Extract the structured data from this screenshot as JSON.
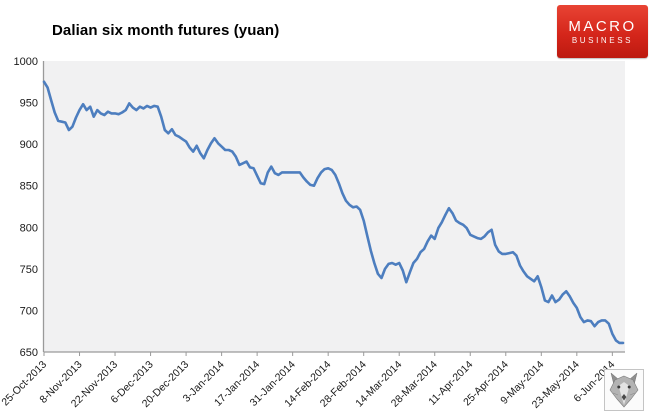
{
  "title": "Dalian six month futures (yuan)",
  "logo": {
    "line1": "MACRO",
    "line2": "BUSINESS",
    "bg_top": "#e84434",
    "bg_mid": "#d5261b",
    "bg_bottom": "#bd1a10"
  },
  "wolf_logo": {
    "name": "wolf-head stamp"
  },
  "chart_data": {
    "type": "line",
    "title": "Dalian six month futures (yuan)",
    "xlabel": "",
    "ylabel": "",
    "ylim": [
      650,
      1000
    ],
    "y_ticks": [
      1000,
      950,
      900,
      850,
      800,
      750,
      700,
      650
    ],
    "x_tick_labels": [
      "25-Oct-2013",
      "8-Nov-2013",
      "22-Nov-2013",
      "6-Dec-2013",
      "20-Dec-2013",
      "3-Jan-2014",
      "17-Jan-2014",
      "31-Jan-2014",
      "14-Feb-2014",
      "28-Feb-2014",
      "14-Mar-2014",
      "28-Mar-2014",
      "11-Apr-2014",
      "25-Apr-2014",
      "9-May-2014",
      "23-May-2014",
      "6-Jun-2014"
    ],
    "points_per_tick": 10,
    "grid": false,
    "legend": "none",
    "line_color": "#4d7ebf",
    "plot_bg": "#f1f1f2",
    "axis_color": "#9a9a9a",
    "values": [
      975,
      968,
      953,
      938,
      928,
      927,
      926,
      917,
      921,
      932,
      941,
      948,
      941,
      945,
      933,
      941,
      937,
      935,
      939,
      937,
      937,
      936,
      938,
      941,
      949,
      944,
      941,
      945,
      943,
      946,
      944,
      946,
      945,
      933,
      917,
      913,
      918,
      911,
      909,
      906,
      903,
      896,
      891,
      898,
      889,
      883,
      893,
      901,
      907,
      901,
      897,
      893,
      893,
      891,
      885,
      875,
      877,
      879,
      872,
      871,
      862,
      853,
      852,
      866,
      873,
      865,
      863,
      866,
      866,
      866,
      866,
      866,
      866,
      860,
      855,
      851,
      850,
      859,
      866,
      870,
      871,
      869,
      863,
      853,
      841,
      832,
      827,
      824,
      825,
      821,
      808,
      790,
      772,
      757,
      744,
      739,
      750,
      756,
      757,
      755,
      757,
      748,
      734,
      746,
      757,
      762,
      770,
      774,
      783,
      790,
      786,
      799,
      806,
      815,
      823,
      817,
      808,
      805,
      803,
      799,
      791,
      789,
      787,
      786,
      789,
      794,
      797,
      779,
      771,
      768,
      768,
      769,
      770,
      766,
      754,
      747,
      741,
      738,
      735,
      741,
      728,
      712,
      710,
      718,
      710,
      713,
      719,
      723,
      717,
      709,
      703,
      692,
      686,
      688,
      687,
      681,
      686,
      688,
      688,
      684,
      672,
      664,
      661,
      661
    ]
  }
}
